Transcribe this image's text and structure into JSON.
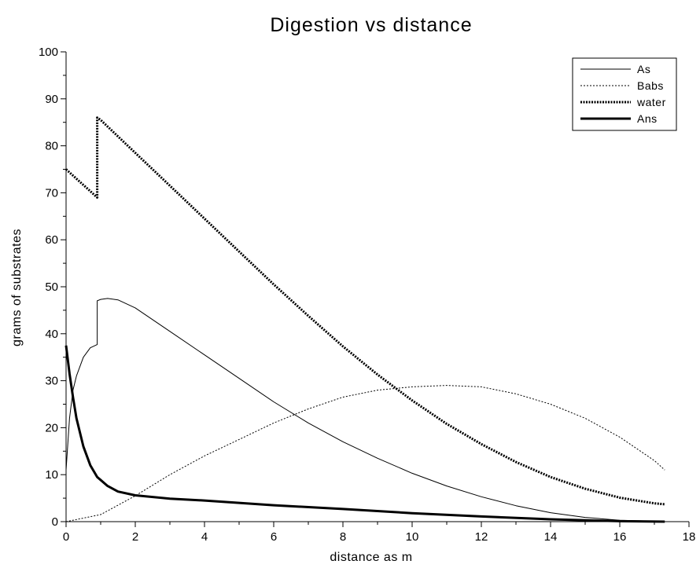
{
  "chart_data": {
    "type": "line",
    "title": "Digestion vs distance",
    "xlabel": "distance as m",
    "ylabel": "grams of substrates",
    "xlim": [
      0,
      18
    ],
    "ylim": [
      0,
      100
    ],
    "xticks": [
      0,
      2,
      4,
      6,
      8,
      10,
      12,
      14,
      16,
      18
    ],
    "yticks": [
      0,
      10,
      20,
      30,
      40,
      50,
      60,
      70,
      80,
      90,
      100
    ],
    "grid": false,
    "legend_position": "top-right",
    "series": [
      {
        "name": "As",
        "style": "thin-solid",
        "x": [
          0,
          0.1,
          0.2,
          0.3,
          0.5,
          0.7,
          0.9,
          0.9,
          1.0,
          1.2,
          1.5,
          2.0,
          3.0,
          4.0,
          5.0,
          6.0,
          7.0,
          8.0,
          9.0,
          10.0,
          11.0,
          12.0,
          13.0,
          14.0,
          15.0,
          16.0,
          17.0,
          17.3
        ],
        "y": [
          11,
          22,
          28,
          31,
          35,
          37,
          37.7,
          47,
          47.3,
          47.5,
          47.2,
          45.5,
          40.5,
          35.5,
          30.5,
          25.5,
          21.0,
          17.0,
          13.5,
          10.3,
          7.6,
          5.3,
          3.4,
          1.9,
          0.9,
          0.3,
          0.1,
          0.0
        ]
      },
      {
        "name": "Babs",
        "style": "thin-dotted",
        "x": [
          0,
          1,
          2,
          3,
          4,
          5,
          6,
          7,
          8,
          9,
          10,
          11,
          12,
          13,
          14,
          15,
          16,
          17,
          17.3
        ],
        "y": [
          0,
          1.5,
          5.5,
          10,
          14,
          17.5,
          21,
          24,
          26.5,
          28,
          28.7,
          29.0,
          28.7,
          27.2,
          25,
          22,
          18,
          13,
          11
        ]
      },
      {
        "name": "water",
        "style": "thick-dotted",
        "x": [
          0,
          0.3,
          0.6,
          0.9,
          0.9,
          1.0,
          2.0,
          3.0,
          4.0,
          5.0,
          6.0,
          7.0,
          8.0,
          9.0,
          10.0,
          11.0,
          12.0,
          13.0,
          14.0,
          15.0,
          16.0,
          17.0,
          17.3
        ],
        "y": [
          75,
          73,
          71,
          69,
          86,
          85.5,
          78.5,
          71.5,
          64.5,
          57.5,
          50.5,
          43.8,
          37.3,
          31.3,
          25.8,
          20.8,
          16.5,
          12.7,
          9.5,
          7.0,
          5.1,
          3.9,
          3.7
        ]
      },
      {
        "name": "Ans",
        "style": "thick-solid",
        "x": [
          0,
          0.1,
          0.2,
          0.3,
          0.5,
          0.7,
          0.9,
          1.2,
          1.5,
          2.0,
          3.0,
          4.0,
          6.0,
          8.0,
          10.0,
          12.0,
          14.0,
          16.0,
          17.3
        ],
        "y": [
          37.5,
          31.5,
          26.5,
          22.0,
          16.0,
          12.0,
          9.5,
          7.6,
          6.4,
          5.6,
          4.9,
          4.5,
          3.5,
          2.7,
          1.8,
          1.1,
          0.5,
          0.1,
          0.0
        ]
      }
    ]
  }
}
